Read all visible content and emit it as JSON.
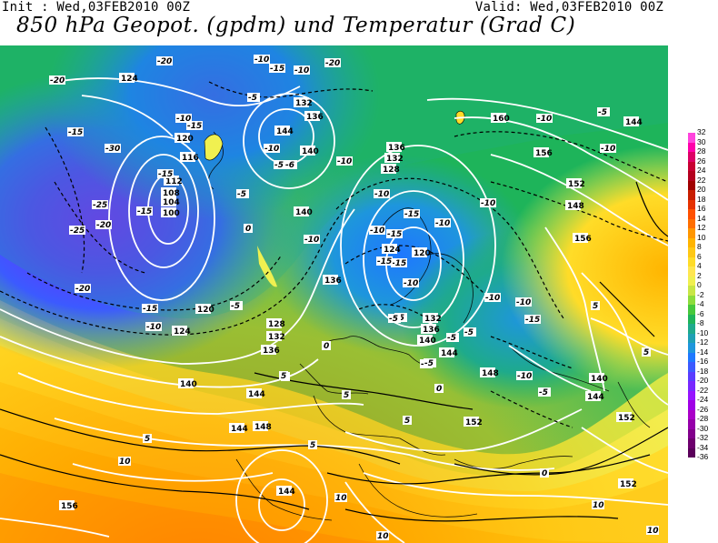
{
  "header": {
    "init": "Init : Wed,03FEB2010 00Z",
    "valid": "Valid: Wed,03FEB2010 00Z",
    "title": "850 hPa Geopot. (gpdm) und Temperatur (Grad C)"
  },
  "legend": {
    "values": [
      "32",
      "30",
      "28",
      "26",
      "24",
      "22",
      "20",
      "18",
      "16",
      "14",
      "12",
      "10",
      "8",
      "6",
      "4",
      "2",
      "0",
      "-2",
      "-4",
      "-6",
      "-8",
      "-10",
      "-12",
      "-14",
      "-16",
      "-18",
      "-20",
      "-22",
      "-24",
      "-26",
      "-28",
      "-30",
      "-32",
      "-34",
      "-36"
    ],
    "colors": [
      "#ff44dd",
      "#ff00aa",
      "#dd0066",
      "#c80032",
      "#b4001e",
      "#a00000",
      "#c81e00",
      "#e63200",
      "#ff5000",
      "#ff6e00",
      "#ff9600",
      "#ffb400",
      "#ffc814",
      "#ffdc28",
      "#ffe650",
      "#f0f050",
      "#c8e646",
      "#8cdc3c",
      "#46c83c",
      "#1eb45a",
      "#1eaa8c",
      "#1ea0b4",
      "#1e96dc",
      "#1e78ff",
      "#3c5aff",
      "#5a3cff",
      "#7828ff",
      "#9614ff",
      "#a000e6",
      "#aa00c8",
      "#9600aa",
      "#82008c",
      "#6e006e",
      "#5a005a"
    ]
  },
  "map_labels": {
    "geopotential": [
      "124",
      "132",
      "136",
      "120",
      "116",
      "112",
      "108",
      "104",
      "100",
      "144",
      "140",
      "136",
      "128",
      "132",
      "124",
      "120",
      "136",
      "140",
      "120",
      "124",
      "128",
      "132",
      "136",
      "140",
      "144",
      "148",
      "152",
      "156",
      "144",
      "140",
      "132",
      "136",
      "140",
      "144",
      "148",
      "152",
      "144",
      "156",
      "160",
      "144",
      "148",
      "152",
      "156",
      "144",
      "152"
    ],
    "temperature": [
      "-20",
      "-20",
      "-15",
      "-30",
      "-15",
      "-25",
      "-20",
      "-25",
      "-20",
      "-15",
      "-10",
      "-15",
      "-10",
      "-15",
      "-20",
      "-10",
      "-5",
      "-10",
      "-5",
      "-6",
      "-10",
      "-5",
      "-10",
      "-10",
      "-15",
      "-10",
      "-15",
      "-10",
      "-15",
      "-5",
      "-10",
      "-10",
      "-10",
      "-15",
      "-5",
      "-10",
      "-5",
      "-5",
      "-10",
      "-5",
      "-5",
      "-10",
      "-15",
      "-5",
      "0",
      "0",
      "5",
      "5",
      "5",
      "10",
      "10",
      "5",
      "5",
      "10",
      "10",
      "0",
      "0",
      "5",
      "5",
      "10",
      "5",
      "-5",
      "-15",
      "-10",
      "-10",
      "-5"
    ]
  }
}
